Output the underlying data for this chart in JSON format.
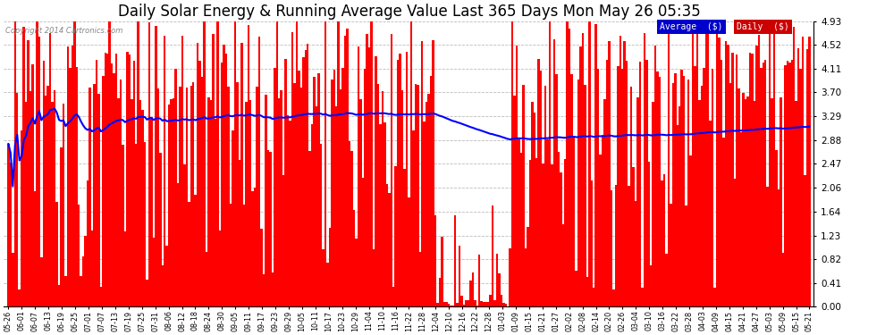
{
  "title": "Daily Solar Energy & Running Average Value Last 365 Days Mon May 26 05:35",
  "copyright": "Copyright 2014 Cartronics.com",
  "bar_color": "#ff0000",
  "avg_color": "#0000ff",
  "background_color": "#ffffff",
  "grid_color": "#bbbbbb",
  "ylim": [
    0.0,
    4.93
  ],
  "yticks": [
    0.0,
    0.41,
    0.82,
    1.23,
    1.64,
    2.06,
    2.47,
    2.88,
    3.29,
    3.7,
    4.11,
    4.52,
    4.93
  ],
  "legend_avg_label": "Average  ($)",
  "legend_daily_label": "Daily  ($)",
  "legend_avg_bg": "#0000cc",
  "legend_daily_bg": "#cc0000",
  "title_fontsize": 12,
  "n_bars": 365,
  "x_labels": [
    "05-26",
    "06-01",
    "06-07",
    "06-13",
    "06-19",
    "06-25",
    "07-01",
    "07-07",
    "07-13",
    "07-19",
    "07-25",
    "07-31",
    "08-06",
    "08-12",
    "08-18",
    "08-24",
    "08-30",
    "09-05",
    "09-11",
    "09-17",
    "09-23",
    "09-29",
    "10-05",
    "10-11",
    "10-17",
    "10-23",
    "10-29",
    "11-04",
    "11-10",
    "11-16",
    "11-22",
    "11-28",
    "12-04",
    "12-10",
    "12-16",
    "12-22",
    "12-28",
    "01-03",
    "01-09",
    "01-15",
    "01-21",
    "01-27",
    "02-02",
    "02-08",
    "02-14",
    "02-20",
    "02-26",
    "03-04",
    "03-10",
    "03-16",
    "03-22",
    "03-28",
    "04-03",
    "04-09",
    "04-15",
    "04-21",
    "04-27",
    "05-03",
    "05-09",
    "05-15",
    "05-21"
  ]
}
